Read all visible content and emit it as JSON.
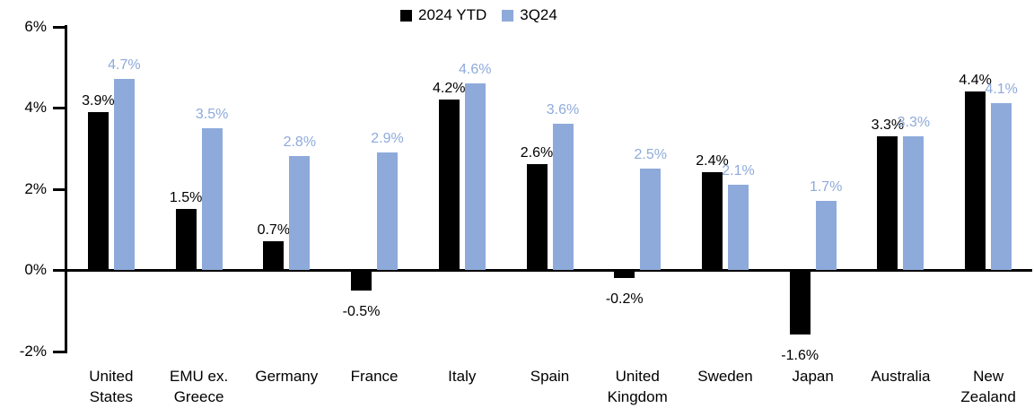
{
  "chart_data": {
    "type": "bar",
    "title": "",
    "xlabel": "",
    "ylabel": "",
    "ylim": [
      -2,
      6
    ],
    "grid": false,
    "legend_position": "top-center",
    "categories": [
      "United States",
      "EMU ex. Greece",
      "Germany",
      "France",
      "Italy",
      "Spain",
      "United Kingdom",
      "Sweden",
      "Japan",
      "Australia",
      "New Zealand"
    ],
    "series": [
      {
        "name": "2024 YTD",
        "color": "#000000",
        "label_color": "#000000",
        "values": [
          3.9,
          1.5,
          0.7,
          -0.5,
          4.2,
          2.6,
          -0.2,
          2.4,
          -1.6,
          3.3,
          4.4
        ],
        "labels": [
          "3.9%",
          "1.5%",
          "0.7%",
          "-0.5%",
          "4.2%",
          "2.6%",
          "-0.2%",
          "2.4%",
          "-1.6%",
          "3.3%",
          "4.4%"
        ]
      },
      {
        "name": "3Q24",
        "color": "#8EAADB",
        "label_color": "#8EAADB",
        "values": [
          4.7,
          3.5,
          2.8,
          2.9,
          4.6,
          3.6,
          2.5,
          2.1,
          1.7,
          3.3,
          4.1
        ],
        "labels": [
          "4.7%",
          "3.5%",
          "2.8%",
          "2.9%",
          "4.6%",
          "3.6%",
          "2.5%",
          "2.1%",
          "1.7%",
          "3.3%",
          "4.1%"
        ]
      }
    ],
    "yticks": [
      {
        "value": 6,
        "label": "6%"
      },
      {
        "value": 4,
        "label": "4%"
      },
      {
        "value": 2,
        "label": "2%"
      },
      {
        "value": 0,
        "label": "0%"
      },
      {
        "value": -2,
        "label": "-2%"
      }
    ]
  }
}
